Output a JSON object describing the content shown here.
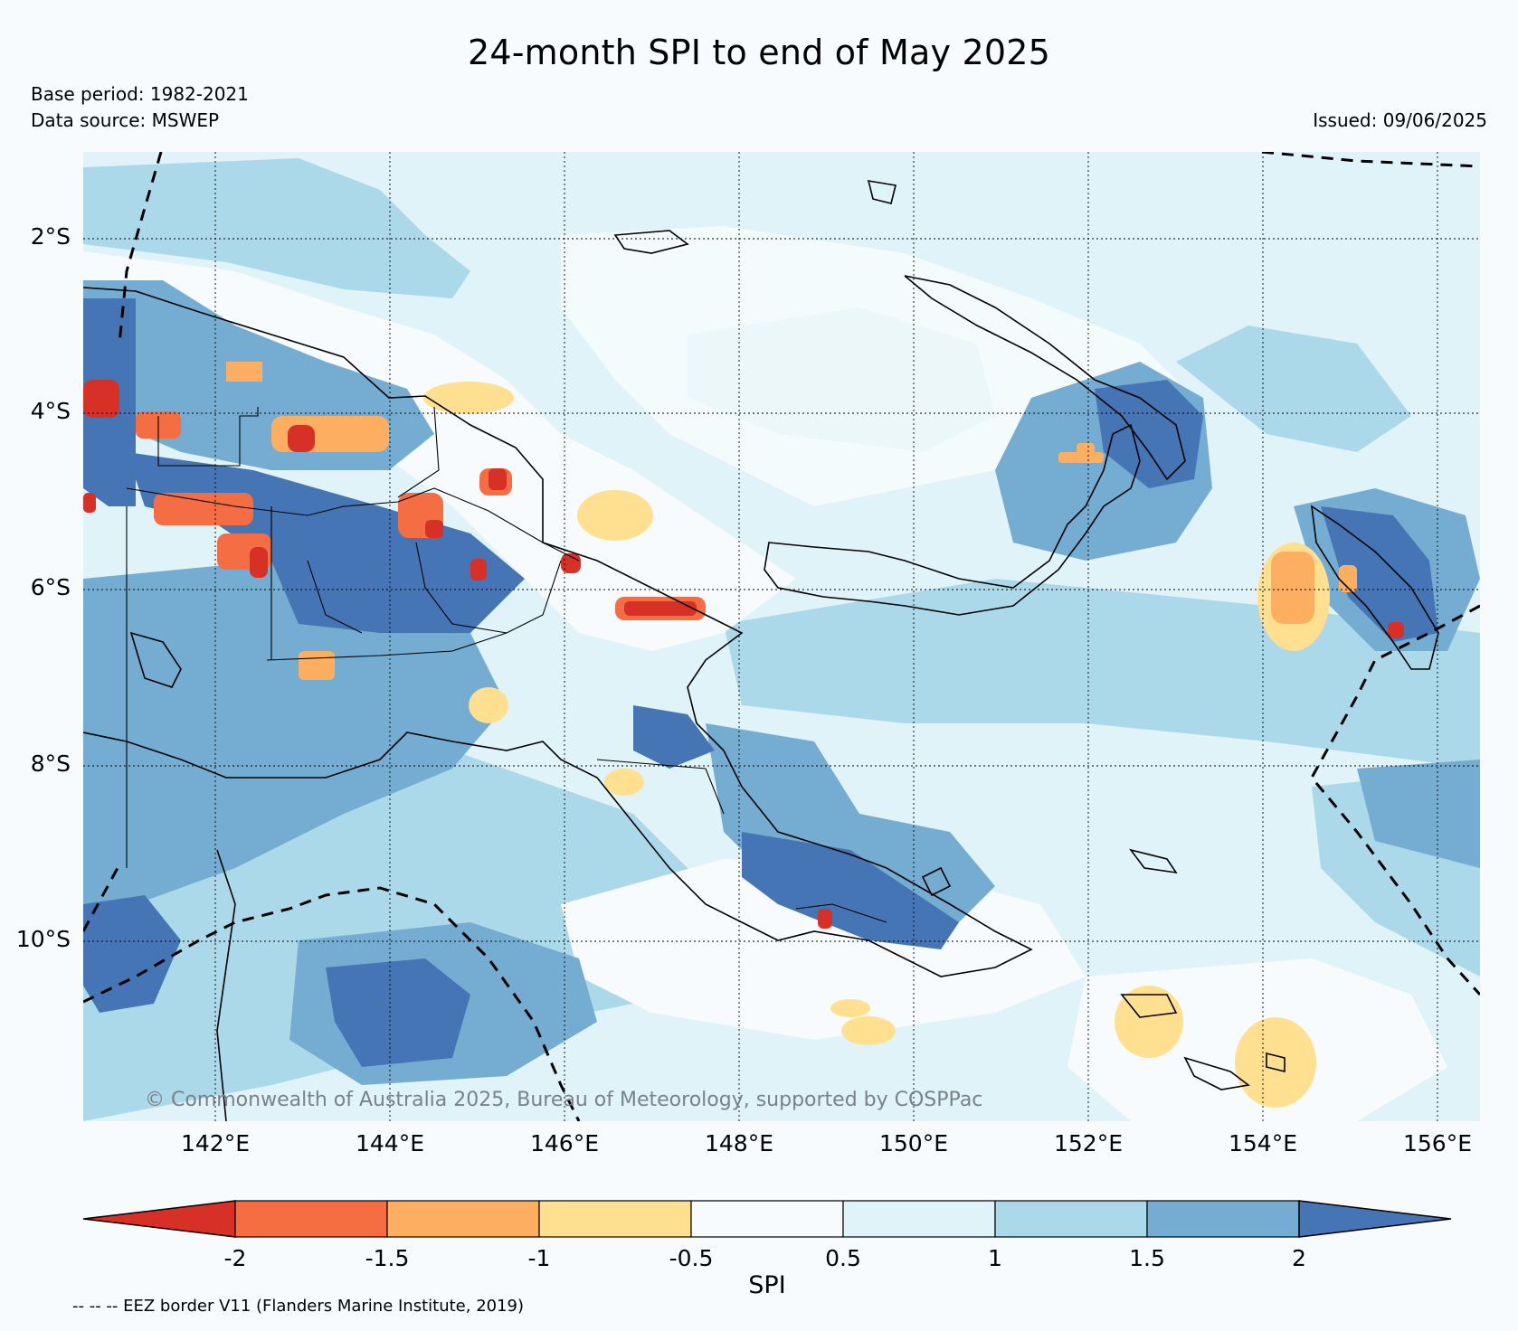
{
  "title": "24-month SPI to end of May 2025",
  "base_period": "Base period: 1982-2021",
  "data_source": "Data source: MSWEP",
  "issued": "Issued: 09/06/2025",
  "copyright": "© Commonwealth of Australia 2025, Bureau of Meteorology, supported by COSPPac",
  "eez_note": "-- -- -- EEZ border V11 (Flanders Marine Institute, 2019)",
  "lat_labels": [
    "2°S",
    "4°S",
    "6°S",
    "8°S",
    "10°S"
  ],
  "lon_labels": [
    "142°E",
    "144°E",
    "146°E",
    "148°E",
    "150°E",
    "152°E",
    "154°E",
    "156°E"
  ],
  "colorbar": {
    "label": "SPI",
    "ticks": [
      "-2",
      "-1.5",
      "-1",
      "-0.5",
      "0.5",
      "1",
      "1.5",
      "2"
    ],
    "colors": [
      "#d73027",
      "#f46d43",
      "#fdae61",
      "#fee090",
      "#f7fbfd",
      "#e0f3f8",
      "#abd9e9",
      "#74add1",
      "#4575b4"
    ]
  },
  "legend_colors": {
    "dry_extreme": "#d73027",
    "dry_severe": "#f46d43",
    "dry_moderate": "#fdae61",
    "dry_mild": "#fee090",
    "near_normal": "#f7fbfd",
    "wet_mild": "#e0f3f8",
    "wet_moderate": "#abd9e9",
    "wet_severe": "#74add1",
    "wet_extreme": "#4575b4"
  }
}
